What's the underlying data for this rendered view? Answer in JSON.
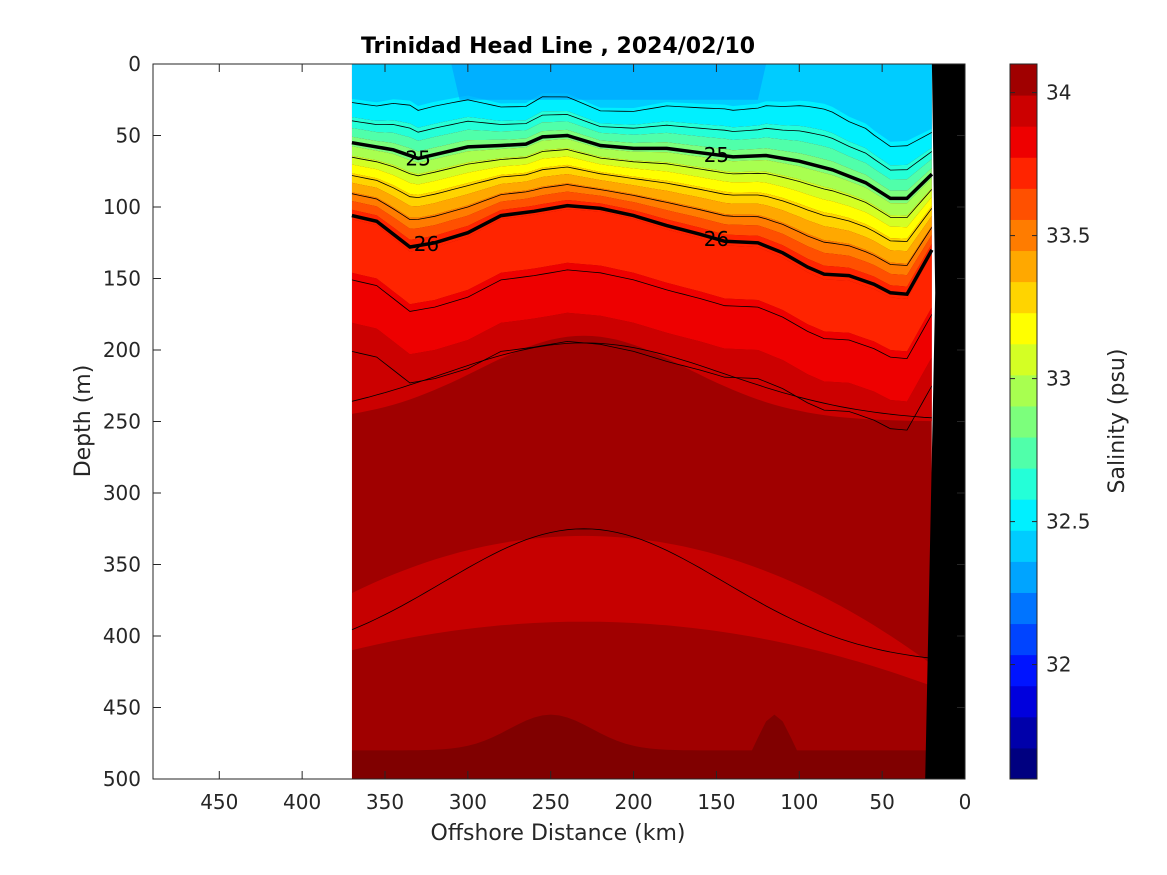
{
  "chart_data": {
    "type": "heatmap",
    "subtype": "filled-contour-section",
    "title": "Trinidad Head Line , 2024/02/10",
    "xlabel": "Offshore Distance (km)",
    "ylabel": "Depth (m)",
    "xlim": [
      490,
      0
    ],
    "ylim": [
      0,
      500
    ],
    "x_reversed": true,
    "y_reversed": true,
    "x_ticks": [
      450,
      400,
      350,
      300,
      250,
      200,
      150,
      100,
      50,
      0
    ],
    "y_ticks": [
      0,
      50,
      100,
      150,
      200,
      250,
      300,
      350,
      400,
      450,
      500
    ],
    "data_extent_x": [
      370,
      20
    ],
    "colorbar": {
      "label": "Salinity (psu)",
      "range": [
        31.6,
        34.1
      ],
      "ticks": [
        32,
        32.5,
        33,
        33.5,
        34
      ],
      "colors": [
        "#000080",
        "#0000aa",
        "#0000dd",
        "#0014ff",
        "#0044ff",
        "#0074ff",
        "#00a4ff",
        "#00ccff",
        "#00f0ff",
        "#24ffd8",
        "#50ffaa",
        "#7cff7c",
        "#a8ff50",
        "#d4ff24",
        "#ffff00",
        "#ffd400",
        "#ffa800",
        "#ff7c00",
        "#ff5000",
        "#ff2400",
        "#ee0000",
        "#cc0000",
        "#a00000"
      ]
    },
    "density_contours": [
      {
        "value": 25,
        "label": "25",
        "points": [
          [
            370,
            55
          ],
          [
            345,
            60
          ],
          [
            330,
            66
          ],
          [
            315,
            62
          ],
          [
            300,
            58
          ],
          [
            280,
            57
          ],
          [
            265,
            56
          ],
          [
            255,
            51
          ],
          [
            240,
            50
          ],
          [
            220,
            57
          ],
          [
            200,
            59
          ],
          [
            180,
            59
          ],
          [
            160,
            62
          ],
          [
            140,
            65
          ],
          [
            120,
            64
          ],
          [
            100,
            68
          ],
          [
            80,
            74
          ],
          [
            60,
            83
          ],
          [
            45,
            94
          ],
          [
            35,
            94
          ],
          [
            20,
            77
          ]
        ]
      },
      {
        "value": 26,
        "label": "26",
        "points": [
          [
            370,
            106
          ],
          [
            355,
            110
          ],
          [
            335,
            128
          ],
          [
            320,
            125
          ],
          [
            300,
            118
          ],
          [
            280,
            106
          ],
          [
            260,
            103
          ],
          [
            240,
            99
          ],
          [
            220,
            101
          ],
          [
            200,
            106
          ],
          [
            180,
            113
          ],
          [
            160,
            119
          ],
          [
            145,
            124
          ],
          [
            125,
            125
          ],
          [
            110,
            132
          ],
          [
            95,
            142
          ],
          [
            85,
            147
          ],
          [
            70,
            148
          ],
          [
            55,
            154
          ],
          [
            45,
            160
          ],
          [
            35,
            161
          ],
          [
            20,
            130
          ]
        ]
      }
    ],
    "bathymetry": {
      "color": "#000000",
      "shelf_edge_km": [
        [
          0,
          0
        ],
        [
          20,
          0
        ],
        [
          18,
          160
        ],
        [
          24,
          500
        ],
        [
          0,
          500
        ]
      ]
    }
  }
}
